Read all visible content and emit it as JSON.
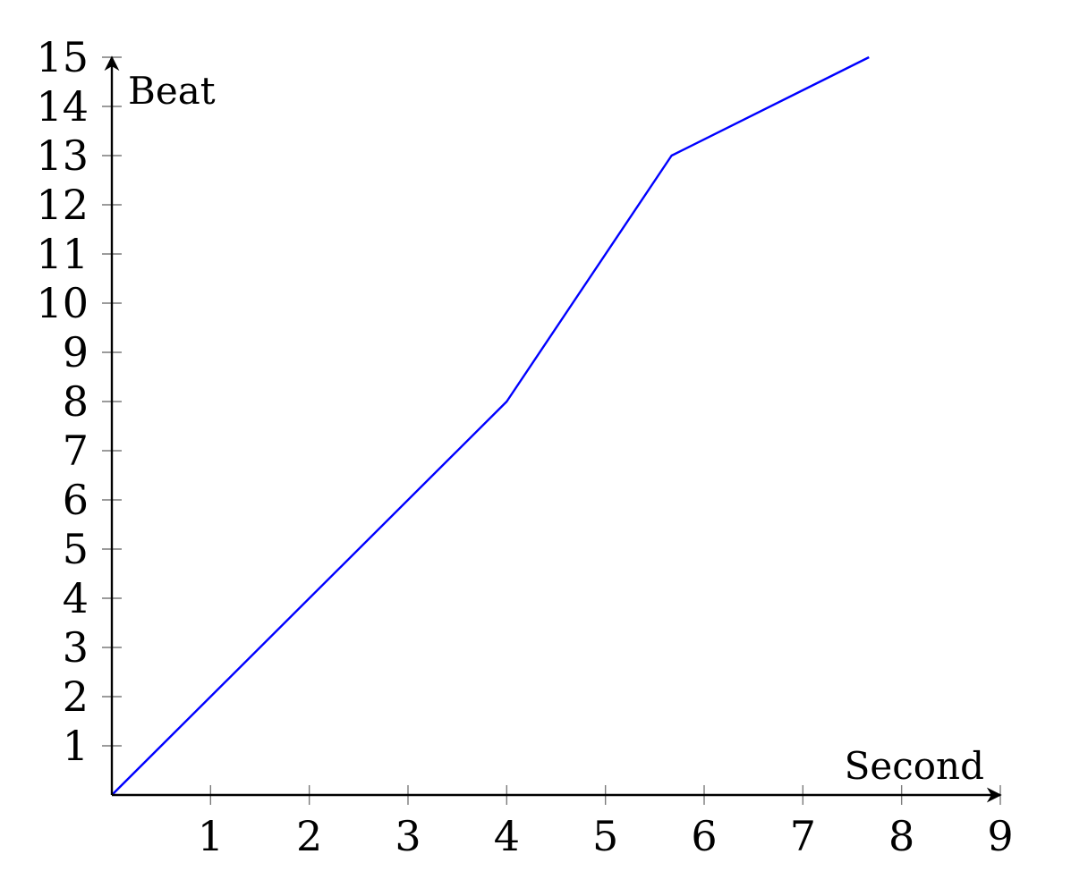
{
  "chart_data": {
    "type": "line",
    "xlabel": "Second",
    "ylabel": "Beat",
    "xlim": [
      0,
      9
    ],
    "ylim": [
      0,
      15
    ],
    "xticks": [
      1,
      2,
      3,
      4,
      5,
      6,
      7,
      8,
      9
    ],
    "yticks": [
      1,
      2,
      3,
      4,
      5,
      6,
      7,
      8,
      9,
      10,
      11,
      12,
      13,
      14,
      15
    ],
    "xtick_labels": [
      "1",
      "2",
      "3",
      "4",
      "5",
      "6",
      "7",
      "8",
      "9"
    ],
    "ytick_labels": [
      "1",
      "2",
      "3",
      "4",
      "5",
      "6",
      "7",
      "8",
      "9",
      "10",
      "11",
      "12",
      "13",
      "14",
      "15"
    ],
    "grid": false,
    "legend": "none",
    "series": [
      {
        "color": "#0000ff",
        "x": [
          0,
          4,
          5.67,
          7.67
        ],
        "y": [
          0,
          8,
          13,
          15
        ]
      }
    ]
  }
}
